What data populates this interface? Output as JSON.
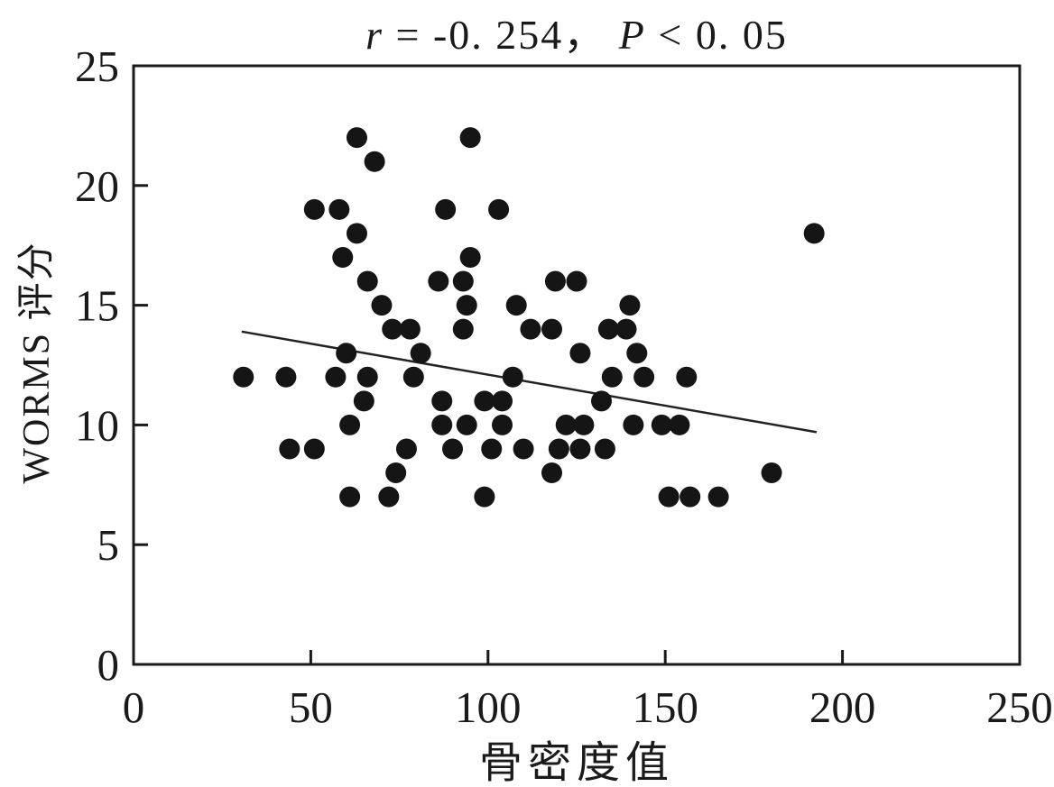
{
  "chart_data": {
    "type": "scatter",
    "title": "r = -0. 254， P < 0. 05",
    "title_segments": [
      {
        "text": "r",
        "italic": true
      },
      {
        "text": " = -0. 254，  ",
        "italic": false
      },
      {
        "text": "P",
        "italic": true
      },
      {
        "text": " < 0. 05",
        "italic": false
      }
    ],
    "xlabel": "骨密度值",
    "ylabel": "WORMS 评分",
    "xlim": [
      0,
      250
    ],
    "ylim": [
      0,
      25
    ],
    "xticks": [
      0,
      50,
      100,
      150,
      200,
      250
    ],
    "yticks": [
      0,
      5,
      10,
      15,
      20,
      25
    ],
    "grid": false,
    "legend": null,
    "frame_color": "#1a1a1a",
    "point_color": "#151515",
    "line_color": "#222222",
    "point_radius_px": 11.5,
    "points": [
      [
        63,
        22
      ],
      [
        95,
        22
      ],
      [
        68,
        21
      ],
      [
        51,
        19
      ],
      [
        58,
        19
      ],
      [
        88,
        19
      ],
      [
        103,
        19
      ],
      [
        63,
        18
      ],
      [
        192,
        18
      ],
      [
        59,
        17
      ],
      [
        95,
        17
      ],
      [
        66,
        16
      ],
      [
        86,
        16
      ],
      [
        93,
        16
      ],
      [
        119,
        16
      ],
      [
        125,
        16
      ],
      [
        70,
        15
      ],
      [
        94,
        15
      ],
      [
        108,
        15
      ],
      [
        140,
        15
      ],
      [
        73,
        14
      ],
      [
        78,
        14
      ],
      [
        93,
        14
      ],
      [
        112,
        14
      ],
      [
        118,
        14
      ],
      [
        134,
        14
      ],
      [
        139,
        14
      ],
      [
        60,
        13
      ],
      [
        81,
        13
      ],
      [
        126,
        13
      ],
      [
        142,
        13
      ],
      [
        31,
        12
      ],
      [
        43,
        12
      ],
      [
        57,
        12
      ],
      [
        66,
        12
      ],
      [
        79,
        12
      ],
      [
        107,
        12
      ],
      [
        135,
        12
      ],
      [
        144,
        12
      ],
      [
        156,
        12
      ],
      [
        65,
        11
      ],
      [
        87,
        11
      ],
      [
        99,
        11
      ],
      [
        104,
        11
      ],
      [
        132,
        11
      ],
      [
        61,
        10
      ],
      [
        87,
        10
      ],
      [
        94,
        10
      ],
      [
        104,
        10
      ],
      [
        122,
        10
      ],
      [
        127,
        10
      ],
      [
        141,
        10
      ],
      [
        149,
        10
      ],
      [
        154,
        10
      ],
      [
        44,
        9
      ],
      [
        51,
        9
      ],
      [
        77,
        9
      ],
      [
        90,
        9
      ],
      [
        101,
        9
      ],
      [
        110,
        9
      ],
      [
        120,
        9
      ],
      [
        126,
        9
      ],
      [
        133,
        9
      ],
      [
        74,
        8
      ],
      [
        118,
        8
      ],
      [
        180,
        8
      ],
      [
        61,
        7
      ],
      [
        72,
        7
      ],
      [
        99,
        7
      ],
      [
        151,
        7
      ],
      [
        157,
        7
      ],
      [
        165,
        7
      ]
    ],
    "trendline": {
      "x1": 30.5,
      "y1": 13.9,
      "x2": 192.7,
      "y2": 9.7
    }
  }
}
